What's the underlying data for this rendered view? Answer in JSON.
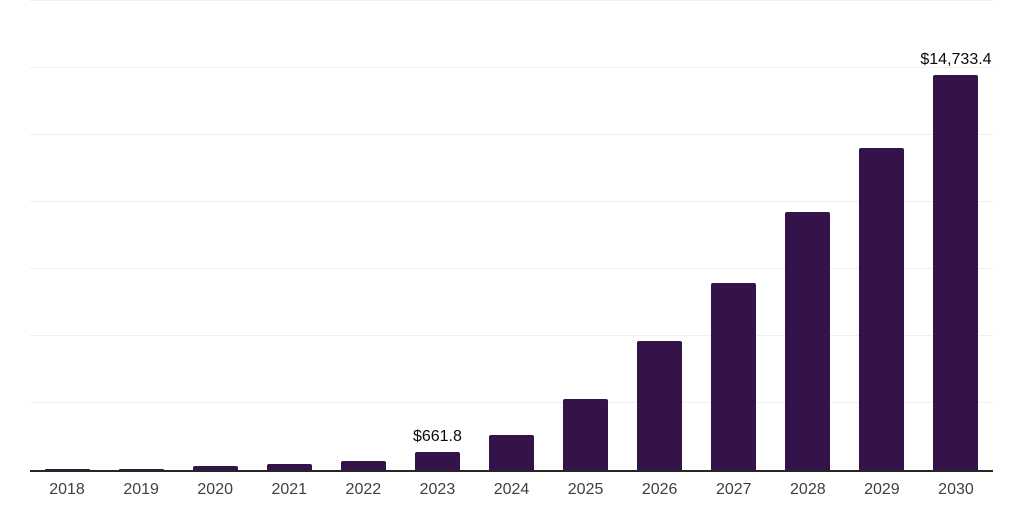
{
  "chart_data": {
    "type": "bar",
    "title": "",
    "xlabel": "",
    "ylabel": "",
    "categories": [
      "2018",
      "2019",
      "2020",
      "2021",
      "2022",
      "2023",
      "2024",
      "2025",
      "2026",
      "2027",
      "2028",
      "2029",
      "2030"
    ],
    "values": [
      35,
      55,
      140,
      220,
      330,
      661.8,
      1310,
      2640,
      4820,
      6990,
      9640,
      12000,
      14733.4
    ],
    "labeled_points": [
      {
        "category": "2023",
        "label": "$661.8"
      },
      {
        "category": "2030",
        "label": "$14,733.4"
      }
    ],
    "ylim": [
      0,
      17500
    ],
    "gridline_step": 2500,
    "grid": true,
    "legend": false,
    "axis_tick_labels_visible": "x-only",
    "colors": {
      "bar": "#331349",
      "gridline": "#efefef",
      "axis_line": "#262626",
      "tick_label": "#3f3f3f",
      "data_label": "#0a0a0a",
      "background": "#ffffff"
    }
  }
}
